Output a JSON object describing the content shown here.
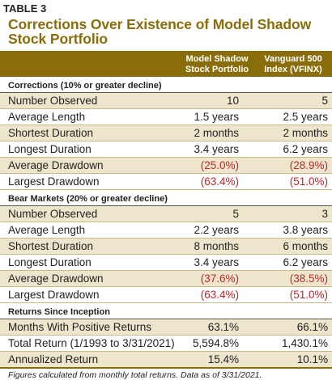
{
  "table_label": "TABLE 3",
  "title": "Corrections Over Existence of Model Shadow Stock Portfolio",
  "columns": {
    "col1": "Model Shadow Stock Portfolio",
    "col2": "Vanguard 500 Index (VFINX)"
  },
  "sections": [
    {
      "heading": "Corrections (10% or greater decline)",
      "rows": [
        {
          "label": "Number Observed",
          "v1": "10",
          "v2": "5",
          "neg": false
        },
        {
          "label": "Average Length",
          "v1": "1.5 years",
          "v2": "2.5 years",
          "neg": false
        },
        {
          "label": "Shortest Duration",
          "v1": "2 months",
          "v2": "2 months",
          "neg": false
        },
        {
          "label": "Longest Duration",
          "v1": "3.4 years",
          "v2": "6.2 years",
          "neg": false
        },
        {
          "label": "Average Drawdown",
          "v1": "(25.0%)",
          "v2": "(28.9%)",
          "neg": true
        },
        {
          "label": "Largest Drawdown",
          "v1": "(63.4%)",
          "v2": "(51.0%)",
          "neg": true
        }
      ]
    },
    {
      "heading": "Bear Markets (20% or greater decline)",
      "rows": [
        {
          "label": "Number Observed",
          "v1": "5",
          "v2": "3",
          "neg": false
        },
        {
          "label": "Average Length",
          "v1": "2.2 years",
          "v2": "3.8 years",
          "neg": false
        },
        {
          "label": "Shortest Duration",
          "v1": "8 months",
          "v2": "6 months",
          "neg": false
        },
        {
          "label": "Longest Duration",
          "v1": "3.4 years",
          "v2": "6.2 years",
          "neg": false
        },
        {
          "label": "Average Drawdown",
          "v1": "(37.6%)",
          "v2": "(38.5%)",
          "neg": true
        },
        {
          "label": "Largest Drawdown",
          "v1": "(63.4%)",
          "v2": "(51.0%)",
          "neg": true
        }
      ]
    },
    {
      "heading": "Returns Since Inception",
      "rows": [
        {
          "label": "Months With Positive Returns",
          "v1": "63.1%",
          "v2": "66.1%",
          "neg": false
        },
        {
          "label": "Total Return (1/1993 to 3/31/2021)",
          "v1": "5,594.8%",
          "v2": "1,430.1%",
          "neg": false
        },
        {
          "label": "Annualized Return",
          "v1": "15.4%",
          "v2": "10.1%",
          "neg": false
        }
      ]
    }
  ],
  "footnote": "Figures calculated from monthly total returns. Data as of 3/31/2021.",
  "colors": {
    "accent": "#8a6d0b",
    "shade": "#ede6cd",
    "negative": "#c0262d"
  }
}
